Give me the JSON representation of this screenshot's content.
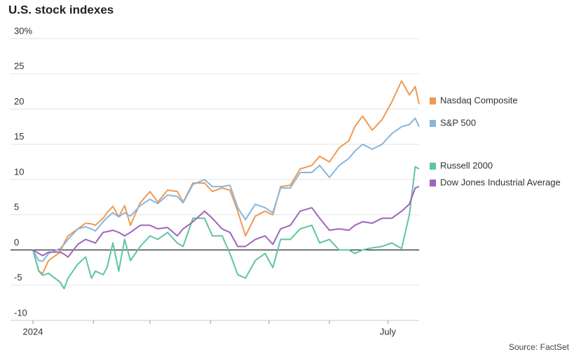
{
  "chart_data": {
    "type": "line",
    "title": "U.S. stock indexes",
    "source": "Source: FactSet",
    "x": [
      0,
      3,
      5,
      8,
      14,
      16,
      18,
      23,
      27,
      30,
      32,
      36,
      38,
      41,
      44,
      47,
      50,
      55,
      60,
      64,
      69,
      74,
      77,
      82,
      88,
      92,
      97,
      101,
      105,
      109,
      114,
      119,
      123,
      127,
      132,
      137,
      143,
      147,
      152,
      157,
      162,
      165,
      169,
      174,
      179,
      184,
      189,
      193,
      196,
      198
    ],
    "xlim": [
      0,
      198
    ],
    "xticks": [
      {
        "value": 0,
        "label": "2024"
      },
      {
        "value": 31,
        "label": null
      },
      {
        "value": 60,
        "label": null
      },
      {
        "value": 91,
        "label": null
      },
      {
        "value": 121,
        "label": null
      },
      {
        "value": 152,
        "label": null
      },
      {
        "value": 182,
        "label": "July"
      }
    ],
    "ylim": [
      -10,
      31
    ],
    "yticks": [
      -10,
      -5,
      0,
      5,
      10,
      15,
      20,
      25,
      {
        "value": 30,
        "label": "30%"
      }
    ],
    "grid": true,
    "series": [
      {
        "name": "Nasdaq Composite",
        "color": "#ef9a50",
        "values": [
          0,
          -3,
          -3.3,
          -1.5,
          -0.3,
          1.0,
          2,
          3,
          3.8,
          3.7,
          3.5,
          4.5,
          5.3,
          6.2,
          4.7,
          6.3,
          3.5,
          6.7,
          8.3,
          6.8,
          8.5,
          8.3,
          6.8,
          9.5,
          9.5,
          8.3,
          8.8,
          8.5,
          5.5,
          2.0,
          4.8,
          5.5,
          5.0,
          9.0,
          9.2,
          11.5,
          12.0,
          13.3,
          12.5,
          14.5,
          15.5,
          17.5,
          19.0,
          17.0,
          18.5,
          21,
          24,
          22,
          23.2,
          20.7
        ]
      },
      {
        "name": "S&P 500",
        "color": "#88b6de",
        "values": [
          0,
          -1.5,
          -1.6,
          -0.5,
          0.2,
          0.8,
          1.5,
          3,
          3.3,
          3.0,
          2.7,
          4,
          4.6,
          5.3,
          4.7,
          5.3,
          4.8,
          6.3,
          7.2,
          6.6,
          7.8,
          7.6,
          6.7,
          9.3,
          10.0,
          9.0,
          9.0,
          9.2,
          6.0,
          4.3,
          6.5,
          6.0,
          5.3,
          8.8,
          8.8,
          11.0,
          11.0,
          12.0,
          10.3,
          12.0,
          13.0,
          14.0,
          15.0,
          14.3,
          15.0,
          16.5,
          17.5,
          17.8,
          18.7,
          17.5
        ]
      },
      {
        "name": "Russell 2000",
        "color": "#5ec4a3",
        "values": [
          0,
          -3,
          -3.6,
          -3.3,
          -4.6,
          -5.5,
          -4.0,
          -2.0,
          -1.0,
          -4.0,
          -3.0,
          -3.5,
          -2.5,
          1.0,
          -3.0,
          1.5,
          -1.5,
          0.5,
          2.0,
          1.5,
          2.5,
          1.0,
          0.5,
          4.5,
          4.5,
          2.0,
          2.0,
          -0.5,
          -3.5,
          -4.0,
          -1.5,
          -0.5,
          -2.5,
          1.5,
          1.5,
          3.0,
          3.5,
          1.0,
          1.5,
          0.0,
          0.0,
          -0.5,
          0.0,
          0.3,
          0.5,
          1.0,
          0.2,
          5.0,
          11.8,
          11.5
        ]
      },
      {
        "name": "Dow Jones Industrial Average",
        "color": "#a066ba",
        "values": [
          0,
          -0.5,
          -0.8,
          -0.3,
          -0.3,
          -0.6,
          -1.0,
          0.8,
          1.5,
          1.2,
          1.0,
          2.5,
          2.6,
          2.8,
          2.5,
          2.0,
          2.5,
          3.5,
          3.5,
          3.0,
          3.2,
          2.0,
          3.0,
          4.0,
          5.5,
          4.5,
          3.0,
          2.5,
          0.5,
          0.5,
          1.5,
          2.0,
          0.8,
          3.0,
          3.5,
          5.5,
          6.0,
          4.5,
          2.8,
          3.0,
          2.8,
          3.5,
          4.0,
          3.8,
          4.5,
          4.5,
          5.5,
          6.5,
          8.8,
          9.0
        ]
      }
    ]
  }
}
